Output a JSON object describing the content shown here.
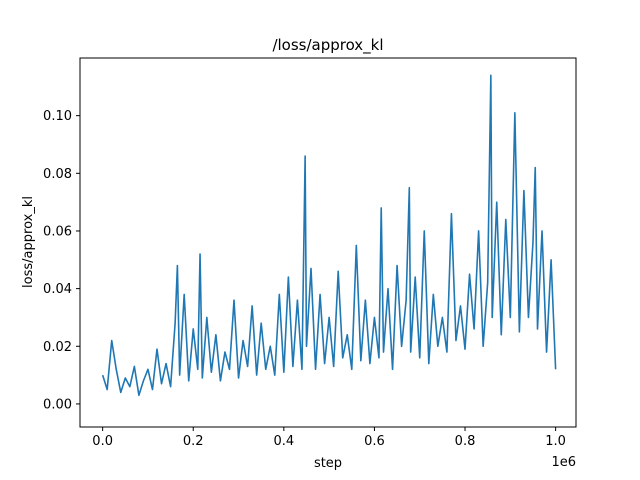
{
  "chart_data": {
    "type": "line",
    "title": "/loss/approx_kl",
    "xlabel": "step",
    "ylabel": "loss/approx_kl",
    "x_multiplier_label": "1e6",
    "xlim": [
      -0.05,
      1.045
    ],
    "ylim": [
      -0.008,
      0.12
    ],
    "x_ticks": [
      0.0,
      0.2,
      0.4,
      0.6,
      0.8,
      1.0
    ],
    "x_tick_labels": [
      "0.0",
      "0.2",
      "0.4",
      "0.6",
      "0.8",
      "1.0"
    ],
    "y_ticks": [
      0.0,
      0.02,
      0.04,
      0.06,
      0.08,
      0.1
    ],
    "y_tick_labels": [
      "0.00",
      "0.02",
      "0.04",
      "0.06",
      "0.08",
      "0.10"
    ],
    "grid": false,
    "legend": "none",
    "series": [
      {
        "color": "#1f77b4",
        "x": [
          0.0,
          0.01,
          0.02,
          0.03,
          0.04,
          0.05,
          0.06,
          0.07,
          0.08,
          0.09,
          0.1,
          0.11,
          0.12,
          0.13,
          0.14,
          0.15,
          0.16,
          0.165,
          0.17,
          0.18,
          0.19,
          0.2,
          0.21,
          0.215,
          0.22,
          0.23,
          0.24,
          0.25,
          0.26,
          0.27,
          0.28,
          0.29,
          0.3,
          0.31,
          0.32,
          0.33,
          0.34,
          0.35,
          0.36,
          0.37,
          0.38,
          0.39,
          0.4,
          0.41,
          0.42,
          0.43,
          0.44,
          0.447,
          0.45,
          0.46,
          0.47,
          0.48,
          0.49,
          0.5,
          0.51,
          0.52,
          0.53,
          0.54,
          0.55,
          0.56,
          0.57,
          0.58,
          0.59,
          0.6,
          0.61,
          0.615,
          0.62,
          0.63,
          0.64,
          0.65,
          0.66,
          0.67,
          0.677,
          0.68,
          0.69,
          0.7,
          0.71,
          0.72,
          0.73,
          0.74,
          0.75,
          0.76,
          0.77,
          0.78,
          0.79,
          0.8,
          0.81,
          0.82,
          0.83,
          0.84,
          0.85,
          0.857,
          0.86,
          0.87,
          0.88,
          0.89,
          0.9,
          0.91,
          0.92,
          0.93,
          0.94,
          0.95,
          0.955,
          0.96,
          0.97,
          0.98,
          0.99,
          1.0
        ],
        "y": [
          0.01,
          0.005,
          0.022,
          0.012,
          0.004,
          0.009,
          0.006,
          0.013,
          0.003,
          0.008,
          0.012,
          0.005,
          0.019,
          0.007,
          0.014,
          0.006,
          0.028,
          0.048,
          0.01,
          0.038,
          0.008,
          0.026,
          0.012,
          0.052,
          0.009,
          0.03,
          0.011,
          0.024,
          0.008,
          0.018,
          0.012,
          0.036,
          0.009,
          0.022,
          0.013,
          0.034,
          0.01,
          0.028,
          0.012,
          0.02,
          0.01,
          0.038,
          0.011,
          0.044,
          0.013,
          0.036,
          0.012,
          0.086,
          0.02,
          0.047,
          0.012,
          0.038,
          0.014,
          0.03,
          0.013,
          0.046,
          0.016,
          0.024,
          0.012,
          0.055,
          0.015,
          0.036,
          0.014,
          0.03,
          0.016,
          0.068,
          0.018,
          0.04,
          0.012,
          0.048,
          0.02,
          0.036,
          0.075,
          0.018,
          0.044,
          0.016,
          0.06,
          0.014,
          0.038,
          0.02,
          0.03,
          0.018,
          0.066,
          0.022,
          0.034,
          0.019,
          0.045,
          0.026,
          0.06,
          0.02,
          0.042,
          0.114,
          0.03,
          0.07,
          0.024,
          0.064,
          0.03,
          0.101,
          0.025,
          0.074,
          0.03,
          0.056,
          0.082,
          0.026,
          0.06,
          0.018,
          0.05,
          0.012
        ]
      }
    ]
  }
}
